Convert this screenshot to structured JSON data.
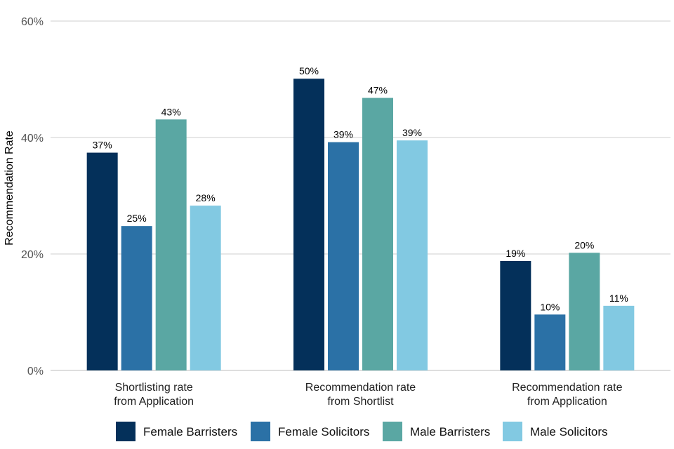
{
  "chart_data": {
    "type": "bar",
    "title": "",
    "xlabel": "",
    "ylabel": "Recommendation Rate",
    "ylim": [
      0,
      60
    ],
    "yticks": [
      "0%",
      "20%",
      "40%",
      "60%"
    ],
    "ytick_values": [
      0,
      20,
      40,
      60
    ],
    "grid": true,
    "legend_position": "bottom",
    "categories": [
      [
        "Shortlisting rate",
        "from Application"
      ],
      [
        "Recommendation rate",
        "from Shortlist"
      ],
      [
        "Recommendation rate",
        "from Application"
      ]
    ],
    "series": [
      {
        "name": "Female Barristers",
        "color": "#04305a",
        "values": [
          37.4,
          50.1,
          18.8
        ],
        "labels": [
          "37%",
          "50%",
          "19%"
        ]
      },
      {
        "name": "Female Solicitors",
        "color": "#2b71a6",
        "values": [
          24.8,
          39.2,
          9.6
        ],
        "labels": [
          "25%",
          "39%",
          "10%"
        ]
      },
      {
        "name": "Male Barristers",
        "color": "#5aa7a3",
        "values": [
          43.1,
          46.8,
          20.2
        ],
        "labels": [
          "43%",
          "47%",
          "20%"
        ]
      },
      {
        "name": "Male Solicitors",
        "color": "#82c9e2",
        "values": [
          28.3,
          39.5,
          11.1
        ],
        "labels": [
          "28%",
          "39%",
          "11%"
        ]
      }
    ]
  }
}
